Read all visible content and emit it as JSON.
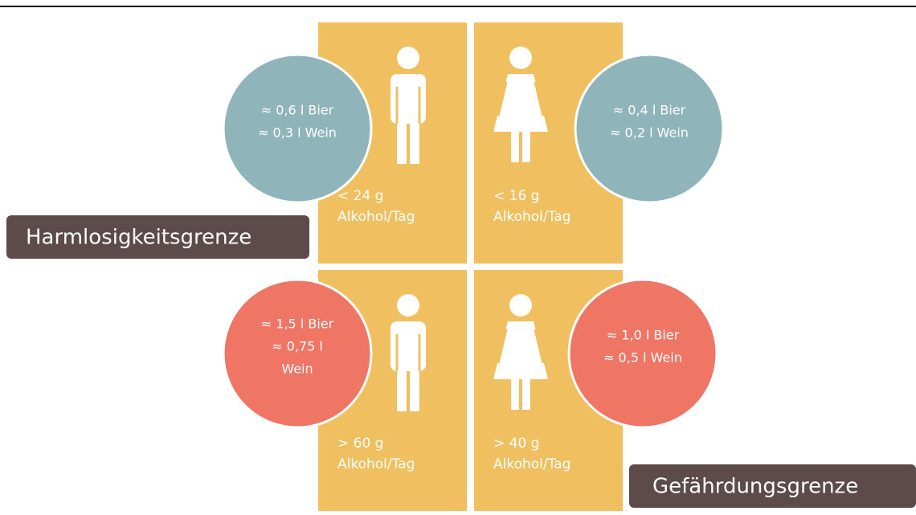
{
  "labels": {
    "harmless": "Harmlosigkeitsgrenze",
    "danger": "Gefährdungsgrenze"
  },
  "panels": [
    {
      "limit": "< 24 g",
      "unit": "Alkohol/Tag",
      "circle": [
        "≈ 0,6 l Bier",
        "≈ 0,3 l Wein"
      ]
    },
    {
      "limit": "< 16 g",
      "unit": "Alkohol/Tag",
      "circle": [
        "≈ 0,4 l Bier",
        "≈ 0,2 l Wein"
      ]
    },
    {
      "limit": "> 60 g",
      "unit": "Alkohol/Tag",
      "circle": [
        "≈ 1,5 l Bier",
        "≈ 0,75 l",
        "Wein"
      ]
    },
    {
      "limit": "> 40 g",
      "unit": "Alkohol/Tag",
      "circle": [
        "≈ 1,0 l Bier",
        "≈ 0,5 l Wein"
      ]
    }
  ]
}
